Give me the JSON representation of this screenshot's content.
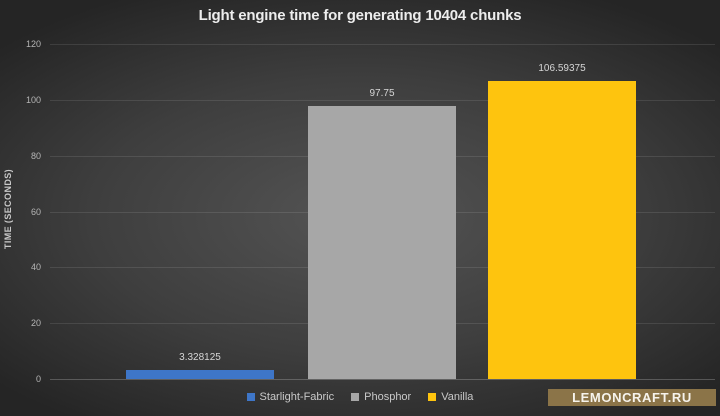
{
  "title": "Light engine time for generating 10404 chunks",
  "watermark": "LEMONCRAFT.RU",
  "chart_data": {
    "type": "bar",
    "title": "Light engine time for generating 10404 chunks",
    "categories": [
      "Starlight-Fabric",
      "Phosphor",
      "Vanilla"
    ],
    "values": [
      3.328125,
      97.75,
      106.59375
    ],
    "value_labels": [
      "3.328125",
      "97.75",
      "106.59375"
    ],
    "bar_colors": [
      "#3e76c8",
      "#a7a7a7",
      "#fec40e"
    ],
    "xlabel": "",
    "ylabel": "TIME (SECONDS)",
    "ylim": [
      0,
      120
    ],
    "yticks": [
      0,
      20,
      40,
      60,
      80,
      100,
      120
    ],
    "grid": true,
    "legend_position": "bottom",
    "legend_entries": [
      "Starlight-Fabric",
      "Phosphor",
      "Vanilla"
    ]
  },
  "colors": {
    "background_center": "#545454",
    "background_edge": "#252525",
    "bar_blue": "#3e76c8",
    "bar_gray": "#a7a7a7",
    "bar_yellow": "#fec40e",
    "badge_background": "#8b7448",
    "badge_text": "#f6f3ec",
    "title_text": "#ededed",
    "axis_text": "#b5b5b5"
  }
}
